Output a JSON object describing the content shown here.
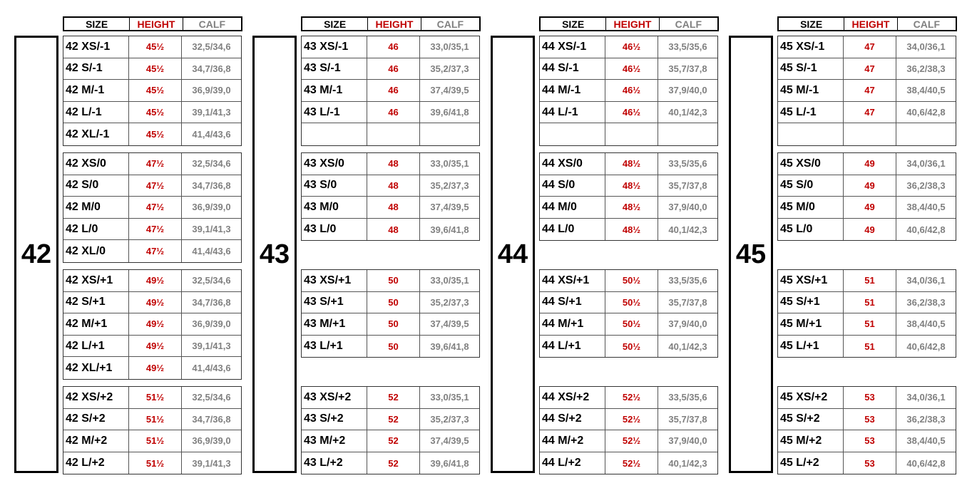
{
  "headers": {
    "size": "SIZE",
    "height": "HEIGHT",
    "calf": "CALF"
  },
  "colors": {
    "height": "#c00000",
    "calf": "#808080",
    "size": "#000000"
  },
  "groups": [
    {
      "label": "42",
      "blocks": [
        [
          [
            "42 XS/-1",
            "45½",
            "32,5/34,6"
          ],
          [
            "42 S/-1",
            "45½",
            "34,7/36,8"
          ],
          [
            "42 M/-1",
            "45½",
            "36,9/39,0"
          ],
          [
            "42 L/-1",
            "45½",
            "39,1/41,3"
          ],
          [
            "42 XL/-1",
            "45½",
            "41,4/43,6"
          ]
        ],
        [
          [
            "42 XS/0",
            "47½",
            "32,5/34,6"
          ],
          [
            "42 S/0",
            "47½",
            "34,7/36,8"
          ],
          [
            "42 M/0",
            "47½",
            "36,9/39,0"
          ],
          [
            "42 L/0",
            "47½",
            "39,1/41,3"
          ],
          [
            "42 XL/0",
            "47½",
            "41,4/43,6"
          ]
        ],
        [
          [
            "42 XS/+1",
            "49½",
            "32,5/34,6"
          ],
          [
            "42 S/+1",
            "49½",
            "34,7/36,8"
          ],
          [
            "42 M/+1",
            "49½",
            "36,9/39,0"
          ],
          [
            "42 L/+1",
            "49½",
            "39,1/41,3"
          ],
          [
            "42 XL/+1",
            "49½",
            "41,4/43,6"
          ]
        ],
        [
          [
            "42 XS/+2",
            "51½",
            "32,5/34,6"
          ],
          [
            "42 S/+2",
            "51½",
            "34,7/36,8"
          ],
          [
            "42 M/+2",
            "51½",
            "36,9/39,0"
          ],
          [
            "42 L/+2",
            "51½",
            "39,1/41,3"
          ]
        ]
      ]
    },
    {
      "label": "43",
      "blocks": [
        [
          [
            "43 XS/-1",
            "46",
            "33,0/35,1"
          ],
          [
            "43 S/-1",
            "46",
            "35,2/37,3"
          ],
          [
            "43 M/-1",
            "46",
            "37,4/39,5"
          ],
          [
            "43 L/-1",
            "46",
            "39,6/41,8"
          ],
          [
            "",
            "",
            ""
          ]
        ],
        [
          [
            "43 XS/0",
            "48",
            "33,0/35,1"
          ],
          [
            "43 S/0",
            "48",
            "35,2/37,3"
          ],
          [
            "43 M/0",
            "48",
            "37,4/39,5"
          ],
          [
            "43 L/0",
            "48",
            "39,6/41,8"
          ]
        ],
        [
          [
            "43 XS/+1",
            "50",
            "33,0/35,1"
          ],
          [
            "43 S/+1",
            "50",
            "35,2/37,3"
          ],
          [
            "43 M/+1",
            "50",
            "37,4/39,5"
          ],
          [
            "43 L/+1",
            "50",
            "39,6/41,8"
          ]
        ],
        [
          [
            "43 XS/+2",
            "52",
            "33,0/35,1"
          ],
          [
            "43 S/+2",
            "52",
            "35,2/37,3"
          ],
          [
            "43 M/+2",
            "52",
            "37,4/39,5"
          ],
          [
            "43 L/+2",
            "52",
            "39,6/41,8"
          ]
        ]
      ]
    },
    {
      "label": "44",
      "blocks": [
        [
          [
            "44 XS/-1",
            "46½",
            "33,5/35,6"
          ],
          [
            "44 S/-1",
            "46½",
            "35,7/37,8"
          ],
          [
            "44 M/-1",
            "46½",
            "37,9/40,0"
          ],
          [
            "44 L/-1",
            "46½",
            "40,1/42,3"
          ],
          [
            "",
            "",
            ""
          ]
        ],
        [
          [
            "44 XS/0",
            "48½",
            "33,5/35,6"
          ],
          [
            "44 S/0",
            "48½",
            "35,7/37,8"
          ],
          [
            "44 M/0",
            "48½",
            "37,9/40,0"
          ],
          [
            "44 L/0",
            "48½",
            "40,1/42,3"
          ]
        ],
        [
          [
            "44 XS/+1",
            "50½",
            "33,5/35,6"
          ],
          [
            "44 S/+1",
            "50½",
            "35,7/37,8"
          ],
          [
            "44 M/+1",
            "50½",
            "37,9/40,0"
          ],
          [
            "44 L/+1",
            "50½",
            "40,1/42,3"
          ]
        ],
        [
          [
            "44 XS/+2",
            "52½",
            "33,5/35,6"
          ],
          [
            "44 S/+2",
            "52½",
            "35,7/37,8"
          ],
          [
            "44 M/+2",
            "52½",
            "37,9/40,0"
          ],
          [
            "44 L/+2",
            "52½",
            "40,1/42,3"
          ]
        ]
      ]
    },
    {
      "label": "45",
      "blocks": [
        [
          [
            "45 XS/-1",
            "47",
            "34,0/36,1"
          ],
          [
            "45 S/-1",
            "47",
            "36,2/38,3"
          ],
          [
            "45 M/-1",
            "47",
            "38,4/40,5"
          ],
          [
            "45 L/-1",
            "47",
            "40,6/42,8"
          ],
          [
            "",
            "",
            ""
          ]
        ],
        [
          [
            "45 XS/0",
            "49",
            "34,0/36,1"
          ],
          [
            "45 S/0",
            "49",
            "36,2/38,3"
          ],
          [
            "45 M/0",
            "49",
            "38,4/40,5"
          ],
          [
            "45 L/0",
            "49",
            "40,6/42,8"
          ]
        ],
        [
          [
            "45 XS/+1",
            "51",
            "34,0/36,1"
          ],
          [
            "45 S/+1",
            "51",
            "36,2/38,3"
          ],
          [
            "45 M/+1",
            "51",
            "38,4/40,5"
          ],
          [
            "45 L/+1",
            "51",
            "40,6/42,8"
          ]
        ],
        [
          [
            "45 XS/+2",
            "53",
            "34,0/36,1"
          ],
          [
            "45 S/+2",
            "53",
            "36,2/38,3"
          ],
          [
            "45 M/+2",
            "53",
            "38,4/40,5"
          ],
          [
            "45 L/+2",
            "53",
            "40,6/42,8"
          ]
        ]
      ]
    }
  ]
}
